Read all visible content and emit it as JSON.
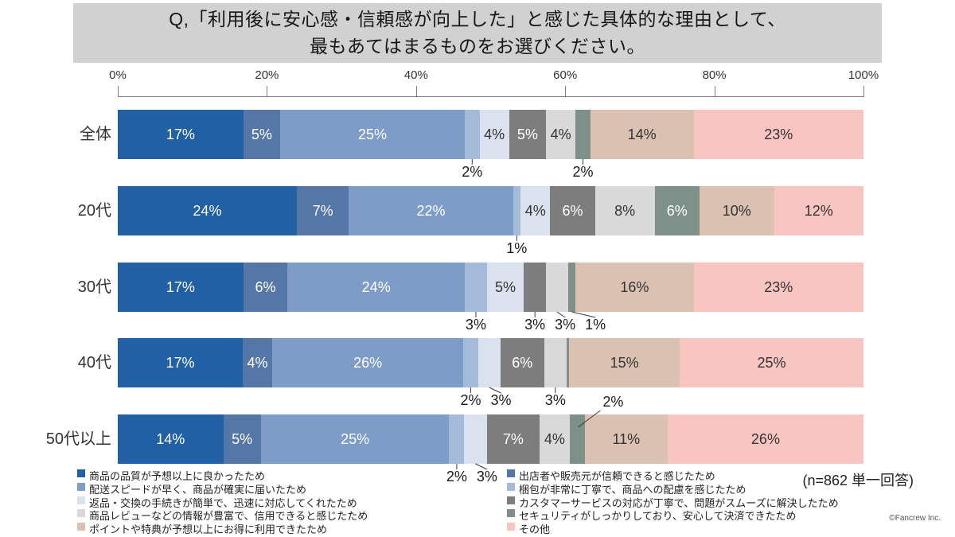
{
  "title": {
    "line1": "Q,「利用後に安心感・信頼感が向上した」と感じた具体的な理由として、",
    "line2": "最もあてはまるものをお選びください。"
  },
  "note": "(n=862 単一回答)",
  "copyright": "©Fancrew Inc.",
  "chart_data": {
    "type": "bar",
    "subtype": "horizontal-100pct-stacked",
    "title": "Q,「利用後に安心感・信頼感が向上した」と感じた具体的な理由として、最もあてはまるものをお選びください。",
    "xlabel": "",
    "ylabel": "",
    "xlim": [
      0,
      100
    ],
    "grid": false,
    "legend_position": "bottom",
    "xticks": [
      "0%",
      "20%",
      "40%",
      "60%",
      "80%",
      "100%"
    ],
    "categories": [
      "全体",
      "20代",
      "30代",
      "40代",
      "50代以上"
    ],
    "series": [
      {
        "name": "商品の品質が予想以上に良かったため",
        "color": "#2160a5",
        "light_text": true,
        "values": [
          17,
          24,
          17,
          17,
          14
        ]
      },
      {
        "name": "出店者や販売元が信頼できると感じたため",
        "color": "#5577a8",
        "light_text": true,
        "values": [
          5,
          7,
          6,
          4,
          5
        ]
      },
      {
        "name": "配送スピードが早く、商品が確実に届いたため",
        "color": "#7e9cc8",
        "light_text": true,
        "values": [
          25,
          22,
          24,
          26,
          25
        ]
      },
      {
        "name": "梱包が非常に丁寧で、商品への配慮を感じたため",
        "color": "#a3bbd9",
        "light_text": false,
        "values": [
          2,
          1,
          3,
          2,
          2
        ]
      },
      {
        "name": "返品・交換の手続きが簡単で、迅速に対応してくれたため",
        "color": "#dbe2ef",
        "light_text": false,
        "values": [
          4,
          4,
          5,
          3,
          3
        ]
      },
      {
        "name": "カスタマーサービスの対応が丁寧で、問題がスムーズに解決したため",
        "color": "#7d7d7d",
        "light_text": true,
        "values": [
          5,
          6,
          3,
          6,
          7
        ]
      },
      {
        "name": "商品レビューなどの情報が豊富で、信用できると感じたため",
        "color": "#d9d9d9",
        "light_text": false,
        "values": [
          4,
          8,
          3,
          3,
          4
        ]
      },
      {
        "name": "セキュリティがしっかりしており、安心して決済できたため",
        "color": "#7d918a",
        "light_text": true,
        "values": [
          2,
          6,
          1,
          0,
          2
        ]
      },
      {
        "name": "ポイントや特典が予想以上にお得に利用できたため",
        "color": "#dbc1b1",
        "light_text": false,
        "values": [
          14,
          10,
          16,
          15,
          11
        ]
      },
      {
        "name": "その他",
        "color": "#f9c5c1",
        "light_text": false,
        "values": [
          23,
          12,
          23,
          25,
          26
        ]
      }
    ],
    "label_modes": [
      [
        "in",
        "in",
        "in",
        "below",
        "in",
        "in",
        "in",
        "below",
        "in",
        "in"
      ],
      [
        "in",
        "in",
        "in",
        "below",
        "in",
        "in",
        "in",
        "in",
        "in",
        "in"
      ],
      [
        "in",
        "in",
        "in",
        "below",
        "in",
        "below",
        "below",
        "below",
        "in",
        "in"
      ],
      [
        "in",
        "in",
        "in",
        "below",
        "below",
        "in",
        "below",
        "none",
        "in",
        "in"
      ],
      [
        "in",
        "in",
        "in",
        "below",
        "below",
        "in",
        "in",
        "above",
        "in",
        "in"
      ]
    ],
    "legend_columns": [
      [
        0,
        2,
        4,
        6,
        8
      ],
      [
        1,
        3,
        5,
        7,
        9
      ]
    ]
  }
}
